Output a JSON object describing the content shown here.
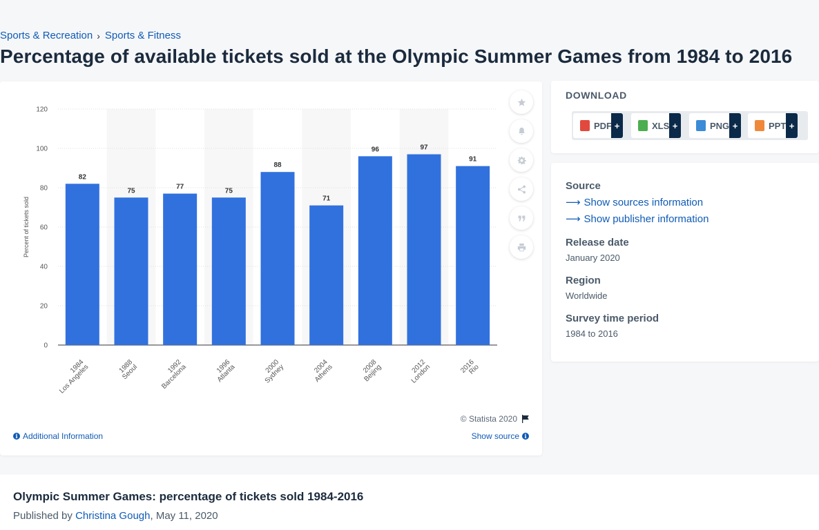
{
  "breadcrumb": {
    "items": [
      "Sports & Recreation",
      "Sports & Fitness"
    ],
    "separator": "›"
  },
  "page_title": "Percentage of available tickets sold at the Olympic Summer Games from 1984 to 2016",
  "chart_card": {
    "copyright": "© Statista 2020",
    "additional_info": "Additional Information",
    "show_source": "Show source"
  },
  "chart_data": {
    "type": "bar",
    "categories": [
      [
        "1984",
        "Los Angeles"
      ],
      [
        "1988",
        "Seoul"
      ],
      [
        "1992",
        "Barcelona"
      ],
      [
        "1996",
        "Atlanta"
      ],
      [
        "2000",
        "Sydney"
      ],
      [
        "2004",
        "Athens"
      ],
      [
        "2008",
        "Beijing"
      ],
      [
        "2012",
        "London"
      ],
      [
        "2016",
        "Rio"
      ]
    ],
    "values": [
      82,
      75,
      77,
      75,
      88,
      71,
      96,
      97,
      91
    ],
    "ylabel": "Percent of tickets sold",
    "yticks": [
      0,
      20,
      40,
      60,
      80,
      100,
      120
    ],
    "ylim": [
      0,
      120
    ],
    "bar_color": "#3171de",
    "grid": true
  },
  "download": {
    "title": "DOWNLOAD",
    "buttons": [
      {
        "label": "PDF",
        "plus": "+",
        "color": "#e2483d"
      },
      {
        "label": "XLS",
        "plus": "+",
        "color": "#4bae4f"
      },
      {
        "label": "PNG",
        "plus": "+",
        "color": "#3c8bd6"
      },
      {
        "label": "PPT",
        "plus": "+",
        "color": "#f0883a"
      }
    ]
  },
  "meta": {
    "source_label": "Source",
    "show_sources": "Show sources information",
    "show_publisher": "Show publisher information",
    "release_label": "Release date",
    "release_value": "January 2020",
    "region_label": "Region",
    "region_value": "Worldwide",
    "survey_label": "Survey time period",
    "survey_value": "1984 to 2016"
  },
  "bottom": {
    "title": "Olympic Summer Games: percentage of tickets sold 1984-2016",
    "published_by": "Published by",
    "author": "Christina Gough",
    "date": ", May 11, 2020"
  }
}
